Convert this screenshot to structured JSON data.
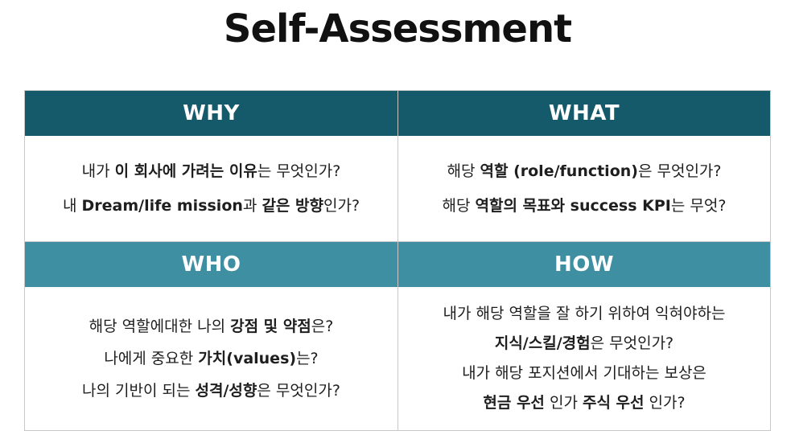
{
  "title": "Self-Assessment",
  "quadrants": [
    {
      "header": "WHY",
      "lines": [
        [
          {
            "t": "내가 ",
            "b": false
          },
          {
            "t": "이 회사에 가려는 이유",
            "b": true
          },
          {
            "t": "는 무엇인가?",
            "b": false
          }
        ],
        [
          {
            "t": "내 ",
            "b": false
          },
          {
            "t": "Dream/life mission",
            "b": true
          },
          {
            "t": "과 ",
            "b": false
          },
          {
            "t": "같은 방향",
            "b": true
          },
          {
            "t": "인가?",
            "b": false
          }
        ]
      ]
    },
    {
      "header": "WHAT",
      "lines": [
        [
          {
            "t": "해당 ",
            "b": false
          },
          {
            "t": "역할 (role/function)",
            "b": true
          },
          {
            "t": "은 무엇인가?",
            "b": false
          }
        ],
        [
          {
            "t": "해당 ",
            "b": false
          },
          {
            "t": "역할의 목표와 success KPI",
            "b": true
          },
          {
            "t": "는 무엇?",
            "b": false
          }
        ]
      ]
    },
    {
      "header": "WHO",
      "lines": [
        [
          {
            "t": "해당 역할에대한 나의 ",
            "b": false
          },
          {
            "t": "강점 및 약점",
            "b": true
          },
          {
            "t": "은?",
            "b": false
          }
        ],
        [
          {
            "t": "나에게 중요한 ",
            "b": false
          },
          {
            "t": "가치(values)",
            "b": true
          },
          {
            "t": "는?",
            "b": false
          }
        ],
        [
          {
            "t": "나의 기반이 되는 ",
            "b": false
          },
          {
            "t": "성격/성향",
            "b": true
          },
          {
            "t": "은 무엇인가?",
            "b": false
          }
        ]
      ]
    },
    {
      "header": "HOW",
      "lines": [
        [
          {
            "t": "내가 해당 역할을 잘 하기 위하여 익혀야하는",
            "b": false
          }
        ],
        [
          {
            "t": "지식/스킬/경험",
            "b": true
          },
          {
            "t": "은 무엇인가?",
            "b": false
          }
        ],
        [
          {
            "t": "내가 해당 포지션에서 기대하는 보상은",
            "b": false
          }
        ],
        [
          {
            "t": "현금 우선",
            "b": true
          },
          {
            "t": " 인가 ",
            "b": false
          },
          {
            "t": "주식 우선",
            "b": true
          },
          {
            "t": " 인가?",
            "b": false
          }
        ]
      ]
    }
  ]
}
